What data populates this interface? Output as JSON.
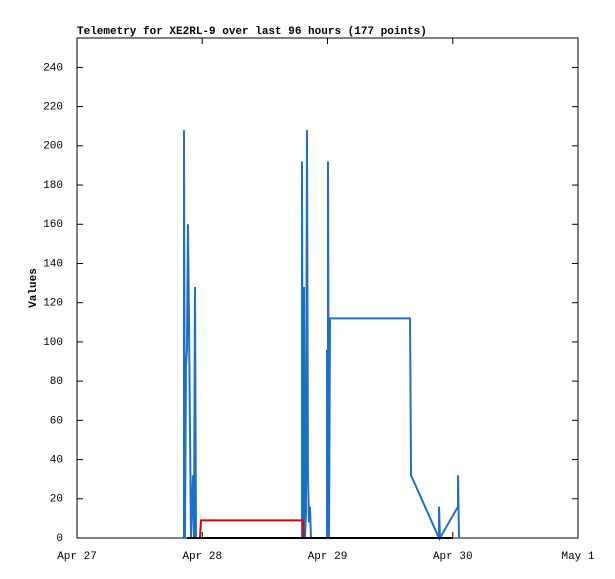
{
  "chart_data": {
    "type": "line",
    "title": "Telemetry for XE2RL-9 over last 96 hours (177 points)",
    "y_label": "Values",
    "xlim": [
      27,
      31
    ],
    "xticks": [
      {
        "value": 27,
        "label": "Apr 27"
      },
      {
        "value": 28,
        "label": "Apr 28"
      },
      {
        "value": 29,
        "label": "Apr 29"
      },
      {
        "value": 30,
        "label": "Apr 30"
      },
      {
        "value": 31,
        "label": "May 1"
      }
    ],
    "ylim": [
      0,
      255
    ],
    "yticks": [
      0,
      20,
      40,
      60,
      80,
      100,
      120,
      140,
      160,
      180,
      200,
      220,
      240
    ],
    "series": [
      {
        "color": "#1f6fc4",
        "x": [
          27.854,
          27.854,
          27.862,
          27.87,
          27.878,
          27.886,
          27.894,
          27.902,
          27.91,
          27.926,
          27.934,
          27.942,
          27.95,
          28.796,
          28.796,
          28.804,
          28.812,
          28.82,
          28.828,
          28.836,
          28.844,
          28.852,
          28.86,
          28.868,
          28.996,
          28.996,
          29.004,
          29.004,
          29.012,
          29.02,
          29.659,
          29.667,
          29.89,
          29.89,
          29.898,
          30.042,
          30.042,
          30.05
        ],
        "values": [
          0,
          208,
          0,
          88,
          96,
          160,
          112,
          56,
          0,
          32,
          0,
          128,
          0,
          0,
          192,
          0,
          128,
          0,
          12,
          208,
          32,
          8,
          16,
          0,
          0,
          96,
          0,
          192,
          0,
          112,
          112,
          32,
          0,
          16,
          0,
          16,
          32,
          0
        ]
      },
      {
        "color": "#e00000",
        "x": [
          27.982,
          27.99,
          28.804,
          28.812
        ],
        "values": [
          0,
          9,
          9,
          0
        ]
      },
      {
        "color": "#000000",
        "x": [
          27.878,
          30.002
        ],
        "values": [
          0,
          0
        ]
      }
    ]
  }
}
